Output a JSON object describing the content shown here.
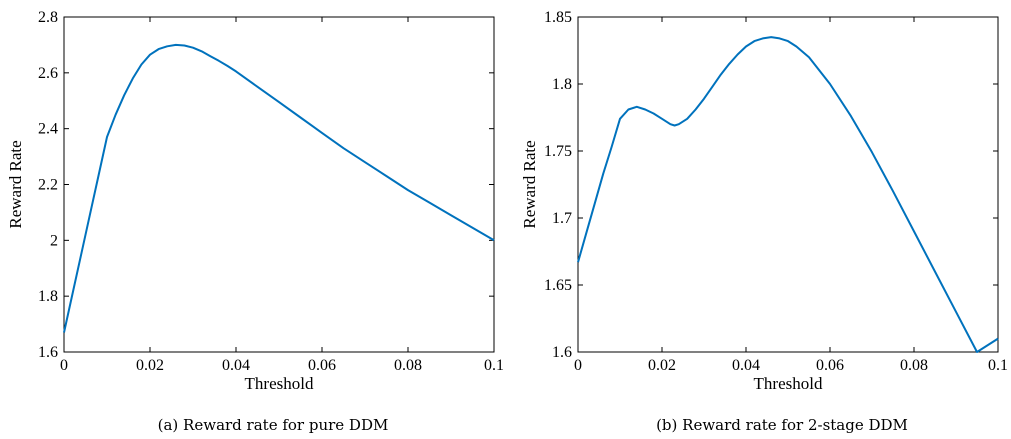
{
  "figures": [
    {
      "caption": "(a) Reward rate for pure DDM",
      "chart_data": {
        "type": "line",
        "title": "",
        "xlabel": "Threshold",
        "ylabel": "Reward Rate",
        "xlim": [
          0,
          0.1
        ],
        "ylim": [
          1.6,
          2.8
        ],
        "xticks": [
          "0",
          "0.02",
          "0.04",
          "0.06",
          "0.08",
          "0.1"
        ],
        "yticks": [
          "1.6",
          "1.8",
          "2",
          "2.2",
          "2.4",
          "2.6",
          "2.8"
        ],
        "grid": false,
        "series": [
          {
            "color": "#0072BD",
            "x": [
              0,
              0.002,
              0.004,
              0.006,
              0.008,
              0.01,
              0.012,
              0.014,
              0.016,
              0.018,
              0.02,
              0.022,
              0.024,
              0.026,
              0.028,
              0.03,
              0.032,
              0.034,
              0.036,
              0.038,
              0.04,
              0.045,
              0.05,
              0.055,
              0.06,
              0.065,
              0.07,
              0.075,
              0.08,
              0.085,
              0.09,
              0.095,
              0.1
            ],
            "y": [
              1.67,
              1.81,
              1.95,
              2.09,
              2.23,
              2.37,
              2.45,
              2.52,
              2.58,
              2.63,
              2.665,
              2.685,
              2.695,
              2.7,
              2.698,
              2.69,
              2.677,
              2.66,
              2.643,
              2.625,
              2.605,
              2.55,
              2.495,
              2.44,
              2.385,
              2.33,
              2.28,
              2.23,
              2.18,
              2.135,
              2.09,
              2.045,
              2.0
            ]
          }
        ]
      }
    },
    {
      "caption": "(b) Reward rate for 2-stage DDM",
      "chart_data": {
        "type": "line",
        "title": "",
        "xlabel": "Threshold",
        "ylabel": "Reward Rate",
        "xlim": [
          0,
          0.1
        ],
        "ylim": [
          1.6,
          1.85
        ],
        "xticks": [
          "0",
          "0.02",
          "0.04",
          "0.06",
          "0.08",
          "0.1"
        ],
        "yticks": [
          "1.6",
          "1.65",
          "1.7",
          "1.75",
          "1.8",
          "1.85"
        ],
        "grid": false,
        "series": [
          {
            "color": "#0072BD",
            "x": [
              0,
              0.002,
              0.004,
              0.006,
              0.008,
              0.01,
              0.012,
              0.014,
              0.016,
              0.018,
              0.02,
              0.022,
              0.023,
              0.024,
              0.026,
              0.028,
              0.03,
              0.032,
              0.034,
              0.036,
              0.038,
              0.04,
              0.042,
              0.044,
              0.046,
              0.048,
              0.05,
              0.052,
              0.055,
              0.06,
              0.065,
              0.07,
              0.075,
              0.08,
              0.085,
              0.09,
              0.095,
              0.1
            ],
            "y": [
              1.667,
              1.689,
              1.711,
              1.733,
              1.753,
              1.774,
              1.781,
              1.783,
              1.781,
              1.778,
              1.774,
              1.77,
              1.769,
              1.77,
              1.774,
              1.781,
              1.789,
              1.798,
              1.807,
              1.815,
              1.822,
              1.828,
              1.832,
              1.834,
              1.835,
              1.834,
              1.832,
              1.828,
              1.82,
              1.8,
              1.776,
              1.749,
              1.72,
              1.69,
              1.66,
              1.63,
              1.6,
              1.61
            ]
          }
        ]
      }
    }
  ]
}
